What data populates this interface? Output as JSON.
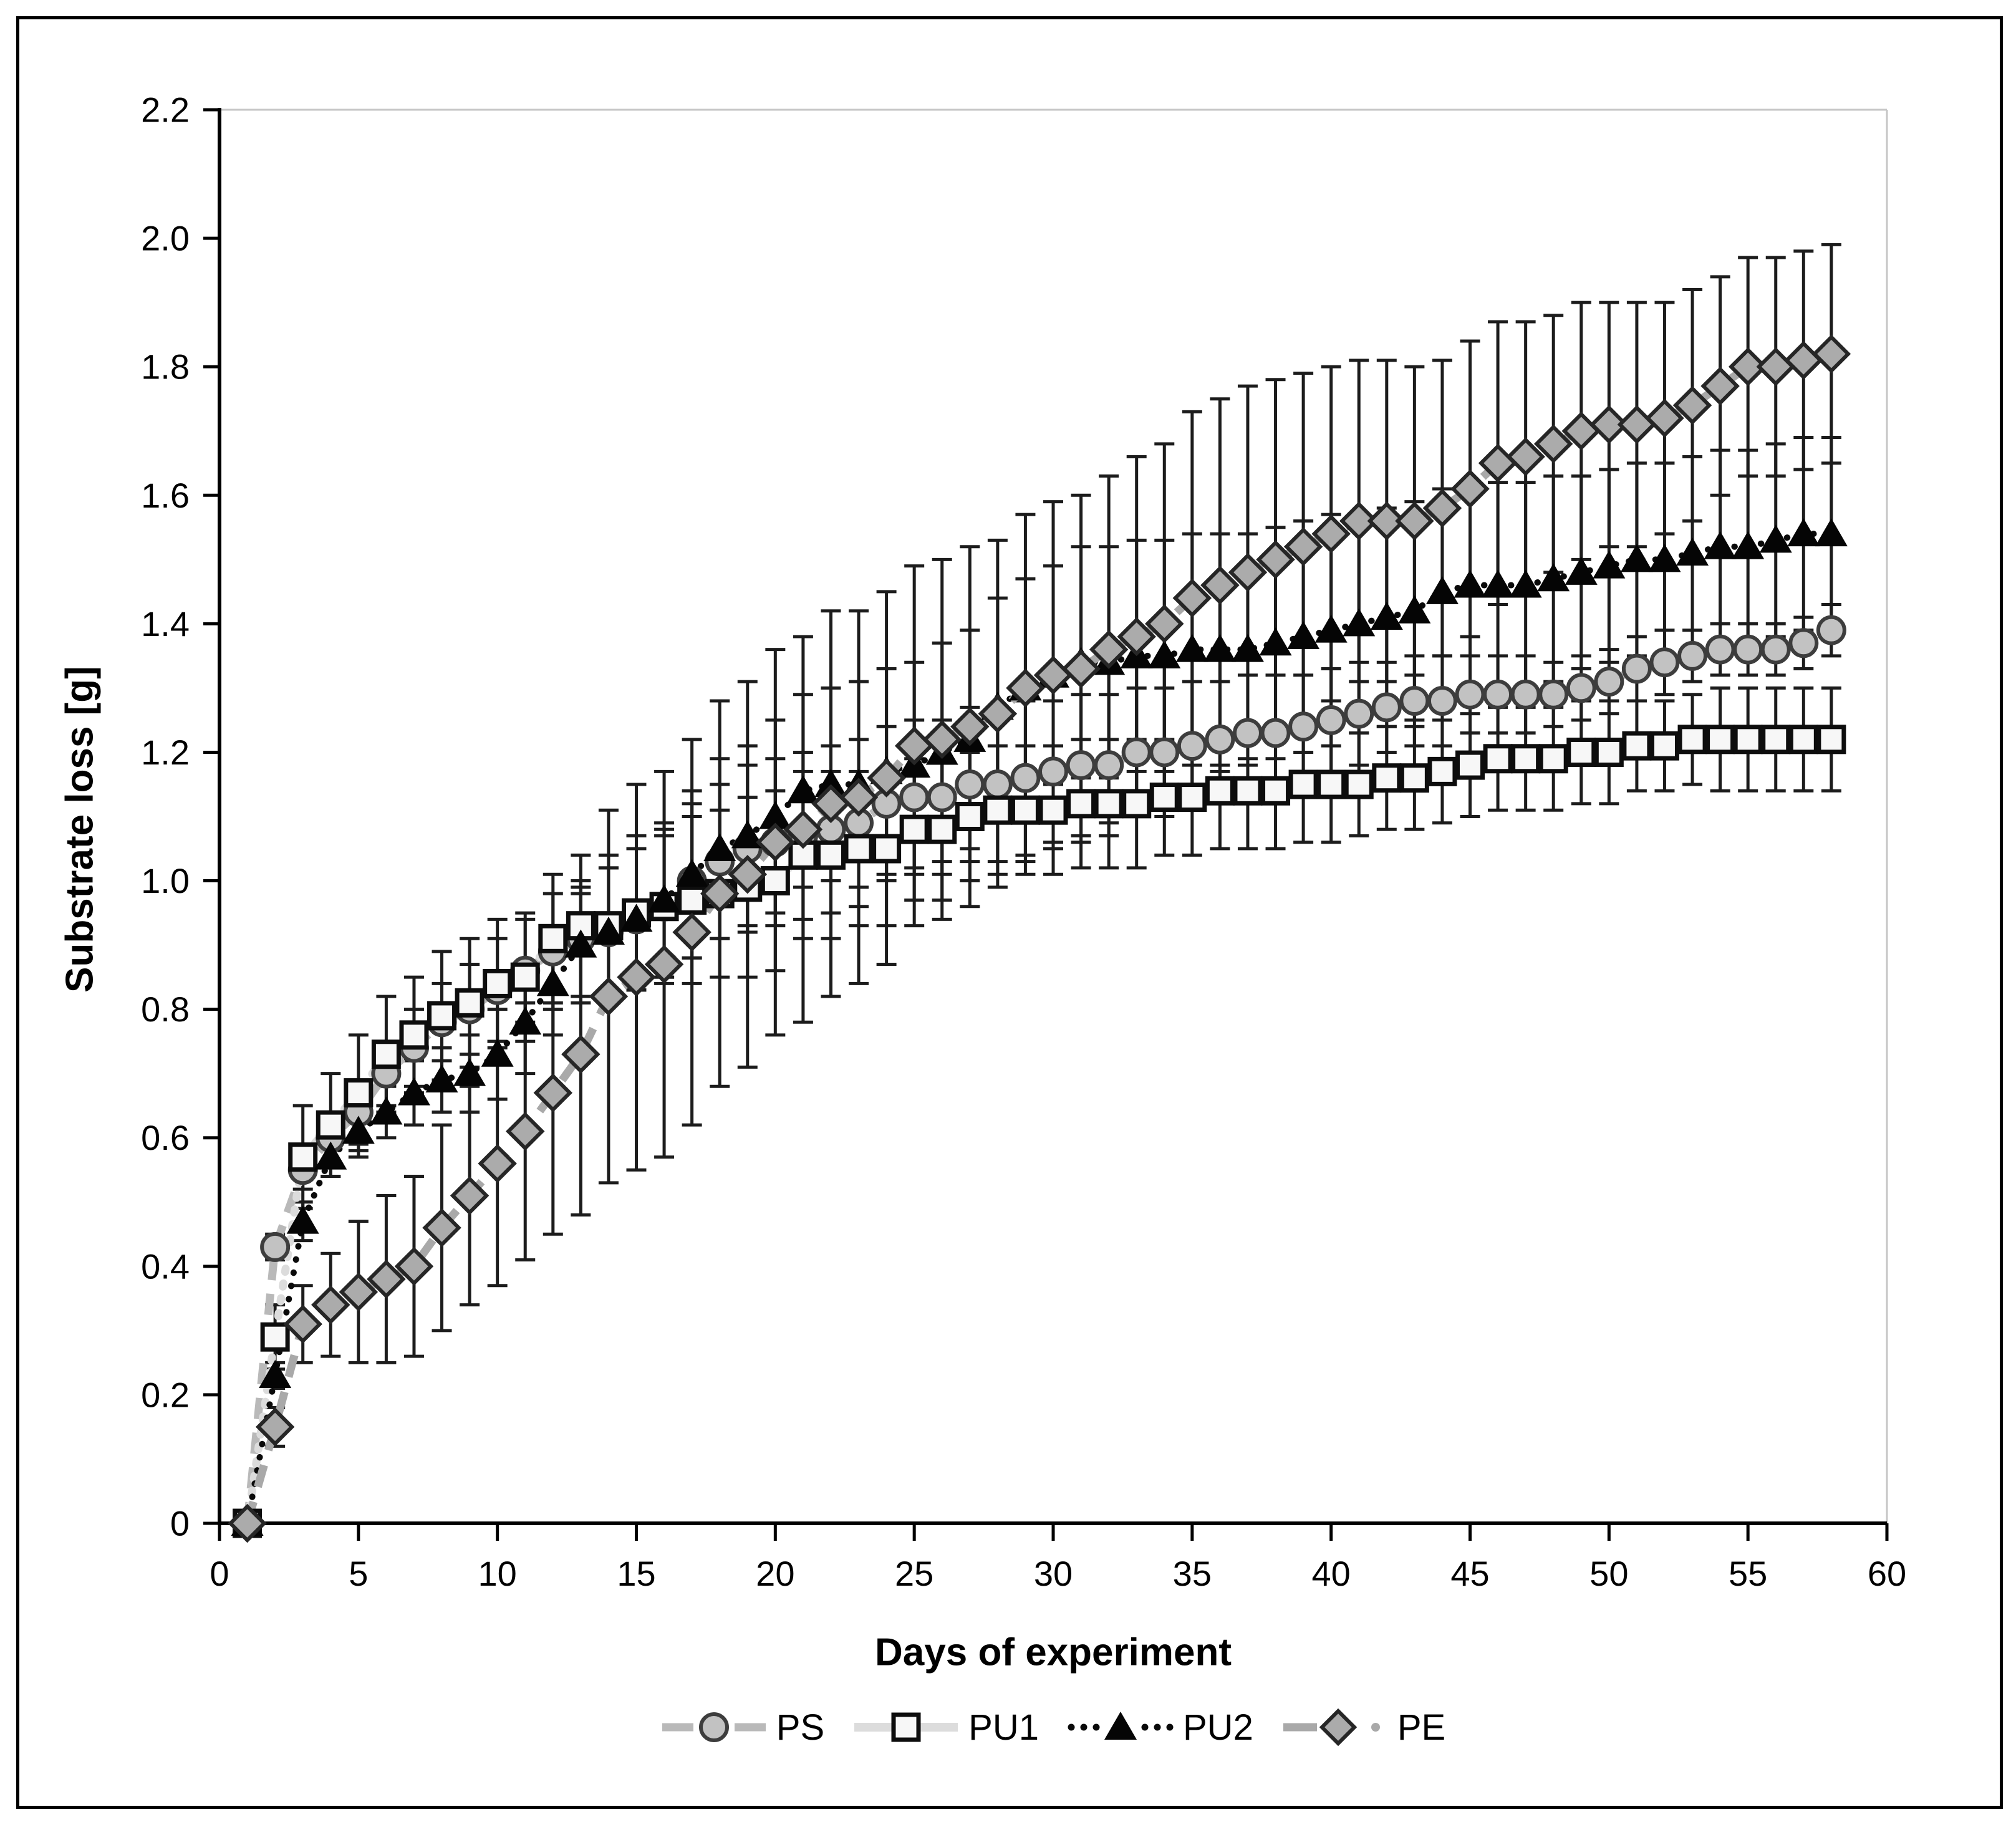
{
  "figure": {
    "background": "#ffffff",
    "border_color": "#000000"
  },
  "chart_data": {
    "type": "line",
    "title": "",
    "xlabel": "Days of experiment",
    "ylabel": "Substrate loss [g]",
    "xlim": [
      0,
      60
    ],
    "ylim": [
      0,
      2.2
    ],
    "x_ticks": [
      0,
      5,
      10,
      15,
      20,
      25,
      30,
      35,
      40,
      45,
      50,
      55,
      60
    ],
    "y_ticks": [
      0,
      0.2,
      0.4,
      0.6,
      0.8,
      1.0,
      1.2,
      1.4,
      1.6,
      1.8,
      2.0,
      2.2
    ],
    "y_tick_labels": [
      "0",
      "0.2",
      "0.4",
      "0.6",
      "0.8",
      "1.0",
      "1.2",
      "1.4",
      "1.6",
      "1.8",
      "2.0",
      "2.2"
    ],
    "grid": false,
    "legend_position": "bottom-center",
    "error_bars": true,
    "x": [
      1,
      2,
      3,
      4,
      5,
      6,
      7,
      8,
      9,
      10,
      11,
      12,
      13,
      14,
      15,
      16,
      17,
      18,
      19,
      20,
      21,
      22,
      23,
      24,
      25,
      26,
      27,
      28,
      29,
      30,
      31,
      32,
      33,
      34,
      35,
      36,
      37,
      38,
      39,
      40,
      41,
      42,
      43,
      44,
      45,
      46,
      47,
      48,
      49,
      50,
      51,
      52,
      53,
      54,
      55,
      56,
      57,
      58
    ],
    "series": [
      {
        "name": "PS",
        "marker": "circle",
        "line_style": "dashed",
        "line_color": "#b9b9b9",
        "marker_fill": "#c2c2c2",
        "marker_stroke": "#3d3d3d",
        "values": [
          0.0,
          0.43,
          0.55,
          0.6,
          0.64,
          0.7,
          0.74,
          0.78,
          0.8,
          0.83,
          0.86,
          0.89,
          0.91,
          0.92,
          0.94,
          0.96,
          1.0,
          1.03,
          1.05,
          1.06,
          1.07,
          1.08,
          1.09,
          1.12,
          1.13,
          1.13,
          1.15,
          1.15,
          1.16,
          1.17,
          1.18,
          1.18,
          1.2,
          1.2,
          1.21,
          1.22,
          1.23,
          1.23,
          1.24,
          1.25,
          1.26,
          1.27,
          1.28,
          1.28,
          1.29,
          1.29,
          1.29,
          1.29,
          1.3,
          1.31,
          1.33,
          1.34,
          1.35,
          1.36,
          1.36,
          1.36,
          1.37,
          1.39
        ],
        "errors": [
          0.0,
          0.02,
          0.03,
          0.04,
          0.05,
          0.05,
          0.06,
          0.06,
          0.07,
          0.08,
          0.08,
          0.09,
          0.09,
          0.1,
          0.11,
          0.11,
          0.12,
          0.12,
          0.13,
          0.13,
          0.13,
          0.13,
          0.13,
          0.12,
          0.12,
          0.12,
          0.12,
          0.12,
          0.12,
          0.11,
          0.11,
          0.11,
          0.1,
          0.1,
          0.1,
          0.09,
          0.09,
          0.09,
          0.08,
          0.08,
          0.08,
          0.07,
          0.07,
          0.07,
          0.06,
          0.06,
          0.06,
          0.05,
          0.05,
          0.05,
          0.05,
          0.05,
          0.04,
          0.04,
          0.04,
          0.04,
          0.04,
          0.04
        ]
      },
      {
        "name": "PU1",
        "marker": "square",
        "line_style": "light-dotted",
        "line_color": "#dcdcdc",
        "marker_fill": "#f7f7f7",
        "marker_stroke": "#0d0d0d",
        "values": [
          0.0,
          0.29,
          0.57,
          0.62,
          0.67,
          0.73,
          0.76,
          0.79,
          0.81,
          0.84,
          0.85,
          0.91,
          0.93,
          0.93,
          0.95,
          0.96,
          0.97,
          0.98,
          0.99,
          1.0,
          1.04,
          1.04,
          1.05,
          1.05,
          1.08,
          1.08,
          1.1,
          1.11,
          1.11,
          1.11,
          1.12,
          1.12,
          1.12,
          1.13,
          1.13,
          1.14,
          1.14,
          1.14,
          1.15,
          1.15,
          1.15,
          1.16,
          1.16,
          1.17,
          1.18,
          1.19,
          1.19,
          1.19,
          1.2,
          1.2,
          1.21,
          1.21,
          1.22,
          1.22,
          1.22,
          1.22,
          1.22,
          1.22
        ],
        "errors": [
          0.0,
          0.05,
          0.08,
          0.08,
          0.09,
          0.09,
          0.09,
          0.1,
          0.1,
          0.1,
          0.1,
          0.1,
          0.11,
          0.11,
          0.12,
          0.12,
          0.13,
          0.13,
          0.14,
          0.14,
          0.13,
          0.13,
          0.12,
          0.12,
          0.11,
          0.11,
          0.1,
          0.1,
          0.1,
          0.1,
          0.1,
          0.1,
          0.1,
          0.09,
          0.09,
          0.09,
          0.09,
          0.09,
          0.09,
          0.09,
          0.08,
          0.08,
          0.08,
          0.08,
          0.08,
          0.08,
          0.08,
          0.08,
          0.08,
          0.08,
          0.07,
          0.07,
          0.07,
          0.08,
          0.08,
          0.08,
          0.08,
          0.08
        ]
      },
      {
        "name": "PU2",
        "marker": "triangle",
        "line_style": "dotted",
        "line_color": "#0a0a0a",
        "marker_fill": "#050505",
        "marker_stroke": "#050505",
        "values": [
          0.0,
          0.23,
          0.47,
          0.57,
          0.61,
          0.64,
          0.67,
          0.69,
          0.7,
          0.73,
          0.78,
          0.84,
          0.9,
          0.92,
          0.94,
          0.97,
          1.01,
          1.05,
          1.07,
          1.1,
          1.14,
          1.15,
          1.15,
          1.17,
          1.18,
          1.2,
          1.22,
          1.27,
          1.3,
          1.32,
          1.34,
          1.34,
          1.35,
          1.35,
          1.36,
          1.36,
          1.36,
          1.37,
          1.38,
          1.39,
          1.4,
          1.41,
          1.42,
          1.45,
          1.46,
          1.46,
          1.46,
          1.47,
          1.48,
          1.49,
          1.5,
          1.5,
          1.51,
          1.52,
          1.52,
          1.53,
          1.54,
          1.54
        ],
        "errors": [
          0.0,
          0.02,
          0.03,
          0.03,
          0.04,
          0.04,
          0.05,
          0.05,
          0.06,
          0.07,
          0.08,
          0.08,
          0.09,
          0.1,
          0.11,
          0.12,
          0.13,
          0.14,
          0.14,
          0.15,
          0.15,
          0.15,
          0.16,
          0.16,
          0.16,
          0.17,
          0.17,
          0.17,
          0.17,
          0.17,
          0.18,
          0.18,
          0.18,
          0.18,
          0.18,
          0.18,
          0.18,
          0.18,
          0.18,
          0.18,
          0.17,
          0.17,
          0.17,
          0.16,
          0.16,
          0.16,
          0.16,
          0.16,
          0.15,
          0.15,
          0.15,
          0.15,
          0.15,
          0.15,
          0.15,
          0.15,
          0.15,
          0.15
        ]
      },
      {
        "name": "PE",
        "marker": "diamond",
        "line_style": "dash-dot",
        "line_color": "#a9a9a9",
        "marker_fill": "#ababab",
        "marker_stroke": "#262626",
        "values": [
          0.0,
          0.15,
          0.31,
          0.34,
          0.36,
          0.38,
          0.4,
          0.46,
          0.51,
          0.56,
          0.61,
          0.67,
          0.73,
          0.82,
          0.85,
          0.87,
          0.92,
          0.98,
          1.01,
          1.06,
          1.08,
          1.12,
          1.13,
          1.16,
          1.21,
          1.22,
          1.24,
          1.26,
          1.3,
          1.32,
          1.33,
          1.36,
          1.38,
          1.4,
          1.44,
          1.46,
          1.48,
          1.5,
          1.52,
          1.54,
          1.56,
          1.56,
          1.56,
          1.58,
          1.61,
          1.65,
          1.66,
          1.68,
          1.7,
          1.71,
          1.71,
          1.72,
          1.74,
          1.77,
          1.8,
          1.8,
          1.81,
          1.82
        ],
        "errors": [
          0.0,
          0.03,
          0.06,
          0.08,
          0.11,
          0.13,
          0.14,
          0.16,
          0.17,
          0.19,
          0.2,
          0.22,
          0.25,
          0.29,
          0.3,
          0.3,
          0.3,
          0.3,
          0.3,
          0.3,
          0.3,
          0.3,
          0.29,
          0.29,
          0.28,
          0.28,
          0.28,
          0.27,
          0.27,
          0.27,
          0.27,
          0.27,
          0.28,
          0.28,
          0.29,
          0.29,
          0.29,
          0.28,
          0.27,
          0.26,
          0.25,
          0.25,
          0.24,
          0.23,
          0.23,
          0.22,
          0.21,
          0.2,
          0.2,
          0.19,
          0.19,
          0.18,
          0.18,
          0.17,
          0.17,
          0.17,
          0.17,
          0.17
        ]
      }
    ],
    "error_bar_color": "#1c1c1c",
    "axis_color": "#000000",
    "plot_border_color": "#c6c6c6"
  }
}
